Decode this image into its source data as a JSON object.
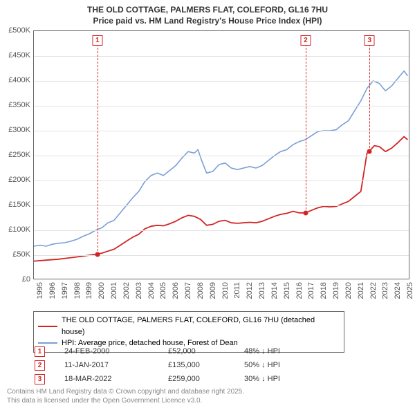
{
  "title_line1": "THE OLD COTTAGE, PALMERS FLAT, COLEFORD, GL16 7HU",
  "title_line2": "Price paid vs. HM Land Registry's House Price Index (HPI)",
  "chart": {
    "type": "line",
    "background_color": "#ffffff",
    "grid_color": "#e2e2e2",
    "axis_color": "#666666",
    "x": {
      "min": 1995,
      "max": 2025.5,
      "ticks": [
        1995,
        1996,
        1997,
        1998,
        1999,
        2000,
        2001,
        2002,
        2003,
        2004,
        2005,
        2006,
        2007,
        2008,
        2009,
        2010,
        2011,
        2012,
        2013,
        2014,
        2015,
        2016,
        2017,
        2018,
        2019,
        2020,
        2021,
        2022,
        2023,
        2024,
        2025
      ]
    },
    "y": {
      "min": 0,
      "max": 500000,
      "tick_step": 50000,
      "tick_labels": [
        "£0",
        "£50K",
        "£100K",
        "£150K",
        "£200K",
        "£250K",
        "£300K",
        "£350K",
        "£400K",
        "£450K",
        "£500K"
      ]
    },
    "series": [
      {
        "id": "hpi",
        "label": "HPI: Average price, detached house, Forest of Dean",
        "color": "#7a9fd6",
        "line_width": 1.6,
        "points": [
          [
            1995,
            68000
          ],
          [
            1995.5,
            70000
          ],
          [
            1996,
            68000
          ],
          [
            1996.5,
            72000
          ],
          [
            1997,
            74000
          ],
          [
            1997.5,
            75000
          ],
          [
            1998,
            78000
          ],
          [
            1998.5,
            82000
          ],
          [
            1999,
            88000
          ],
          [
            1999.5,
            93000
          ],
          [
            2000,
            100000
          ],
          [
            2000.5,
            105000
          ],
          [
            2001,
            115000
          ],
          [
            2001.5,
            120000
          ],
          [
            2002,
            135000
          ],
          [
            2002.5,
            150000
          ],
          [
            2003,
            165000
          ],
          [
            2003.5,
            178000
          ],
          [
            2004,
            198000
          ],
          [
            2004.5,
            210000
          ],
          [
            2005,
            215000
          ],
          [
            2005.5,
            210000
          ],
          [
            2006,
            220000
          ],
          [
            2006.5,
            230000
          ],
          [
            2007,
            245000
          ],
          [
            2007.5,
            258000
          ],
          [
            2008,
            255000
          ],
          [
            2008.3,
            262000
          ],
          [
            2008.6,
            240000
          ],
          [
            2009,
            215000
          ],
          [
            2009.5,
            218000
          ],
          [
            2010,
            232000
          ],
          [
            2010.5,
            235000
          ],
          [
            2011,
            225000
          ],
          [
            2011.5,
            222000
          ],
          [
            2012,
            225000
          ],
          [
            2012.5,
            228000
          ],
          [
            2013,
            225000
          ],
          [
            2013.5,
            230000
          ],
          [
            2014,
            240000
          ],
          [
            2014.5,
            250000
          ],
          [
            2015,
            258000
          ],
          [
            2015.5,
            262000
          ],
          [
            2016,
            272000
          ],
          [
            2016.5,
            278000
          ],
          [
            2017,
            282000
          ],
          [
            2017.5,
            290000
          ],
          [
            2018,
            298000
          ],
          [
            2018.5,
            300000
          ],
          [
            2019,
            300000
          ],
          [
            2019.5,
            302000
          ],
          [
            2020,
            312000
          ],
          [
            2020.5,
            320000
          ],
          [
            2021,
            340000
          ],
          [
            2021.5,
            360000
          ],
          [
            2022,
            385000
          ],
          [
            2022.5,
            400000
          ],
          [
            2023,
            395000
          ],
          [
            2023.5,
            380000
          ],
          [
            2024,
            390000
          ],
          [
            2024.5,
            405000
          ],
          [
            2025,
            420000
          ],
          [
            2025.3,
            410000
          ]
        ]
      },
      {
        "id": "property",
        "label": "THE OLD COTTAGE, PALMERS FLAT, COLEFORD, GL16 7HU (detached house)",
        "color": "#d22424",
        "line_width": 1.8,
        "points": [
          [
            1995,
            38000
          ],
          [
            1996,
            40000
          ],
          [
            1997,
            42000
          ],
          [
            1998,
            45000
          ],
          [
            1999,
            48000
          ],
          [
            2000,
            52000
          ],
          [
            2000.5,
            54000
          ],
          [
            2001,
            58000
          ],
          [
            2001.5,
            62000
          ],
          [
            2002,
            70000
          ],
          [
            2002.5,
            78000
          ],
          [
            2003,
            86000
          ],
          [
            2003.5,
            92000
          ],
          [
            2004,
            103000
          ],
          [
            2004.5,
            108000
          ],
          [
            2005,
            110000
          ],
          [
            2005.5,
            109000
          ],
          [
            2006,
            113000
          ],
          [
            2006.5,
            118000
          ],
          [
            2007,
            125000
          ],
          [
            2007.5,
            130000
          ],
          [
            2008,
            128000
          ],
          [
            2008.5,
            122000
          ],
          [
            2009,
            110000
          ],
          [
            2009.5,
            112000
          ],
          [
            2010,
            118000
          ],
          [
            2010.5,
            120000
          ],
          [
            2011,
            115000
          ],
          [
            2011.5,
            114000
          ],
          [
            2012,
            115000
          ],
          [
            2012.5,
            116000
          ],
          [
            2013,
            115000
          ],
          [
            2013.5,
            118000
          ],
          [
            2014,
            123000
          ],
          [
            2014.5,
            128000
          ],
          [
            2015,
            132000
          ],
          [
            2015.5,
            134000
          ],
          [
            2016,
            138000
          ],
          [
            2016.5,
            135000
          ],
          [
            2017,
            135000
          ],
          [
            2017.5,
            140000
          ],
          [
            2018,
            145000
          ],
          [
            2018.5,
            148000
          ],
          [
            2019,
            147000
          ],
          [
            2019.5,
            148000
          ],
          [
            2020,
            153000
          ],
          [
            2020.5,
            158000
          ],
          [
            2021,
            168000
          ],
          [
            2021.5,
            178000
          ],
          [
            2022,
            255000
          ],
          [
            2022.2,
            259000
          ],
          [
            2022.6,
            270000
          ],
          [
            2023,
            268000
          ],
          [
            2023.5,
            258000
          ],
          [
            2024,
            265000
          ],
          [
            2024.5,
            276000
          ],
          [
            2025,
            288000
          ],
          [
            2025.3,
            282000
          ]
        ]
      }
    ],
    "sale_markers": [
      {
        "n": "1",
        "x": 2000.15,
        "y": 52000,
        "color": "#d22424"
      },
      {
        "n": "2",
        "x": 2017.03,
        "y": 135000,
        "color": "#d22424"
      },
      {
        "n": "3",
        "x": 2022.21,
        "y": 259000,
        "color": "#d22424"
      }
    ]
  },
  "legend": {
    "rows": [
      {
        "color": "#d22424",
        "width": 2,
        "text": "THE OLD COTTAGE, PALMERS FLAT, COLEFORD, GL16 7HU (detached house)"
      },
      {
        "color": "#7a9fd6",
        "width": 2,
        "text": "HPI: Average price, detached house, Forest of Dean"
      }
    ]
  },
  "sales": {
    "pct_suffix": " ↓ HPI",
    "rows": [
      {
        "n": "1",
        "date": "24-FEB-2000",
        "price": "£52,000",
        "pct": "48%",
        "color": "#d22424"
      },
      {
        "n": "2",
        "date": "11-JAN-2017",
        "price": "£135,000",
        "pct": "50%",
        "color": "#d22424"
      },
      {
        "n": "3",
        "date": "18-MAR-2022",
        "price": "£259,000",
        "pct": "30%",
        "color": "#d22424"
      }
    ]
  },
  "footer": {
    "line1": "Contains HM Land Registry data © Crown copyright and database right 2025.",
    "line2": "This data is licensed under the Open Government Licence v3.0."
  }
}
